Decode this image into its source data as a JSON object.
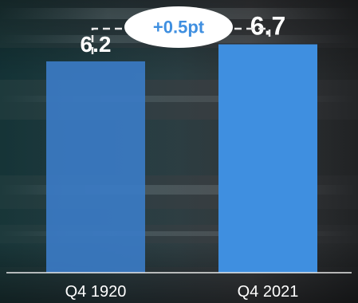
{
  "chart_data": {
    "type": "bar",
    "title": "",
    "xlabel": "",
    "ylabel": "",
    "categories": [
      "Q4 1920",
      "Q4 2021"
    ],
    "values": [
      6.2,
      6.7
    ],
    "value_labels": [
      "6.2",
      "6.7"
    ],
    "ylim": [
      0,
      8
    ],
    "grid": false,
    "annotation": {
      "text": "+0.5pt",
      "from": "Q4 1920",
      "to": "Q4 2021"
    },
    "colors": {
      "bar_first": "#3b7bc4",
      "bar_second": "#3f8fe0",
      "annotation_text": "#3f8fe0",
      "annotation_bubble": "#ffffff",
      "axis": "#e8e8e8",
      "text": "#ffffff"
    }
  }
}
